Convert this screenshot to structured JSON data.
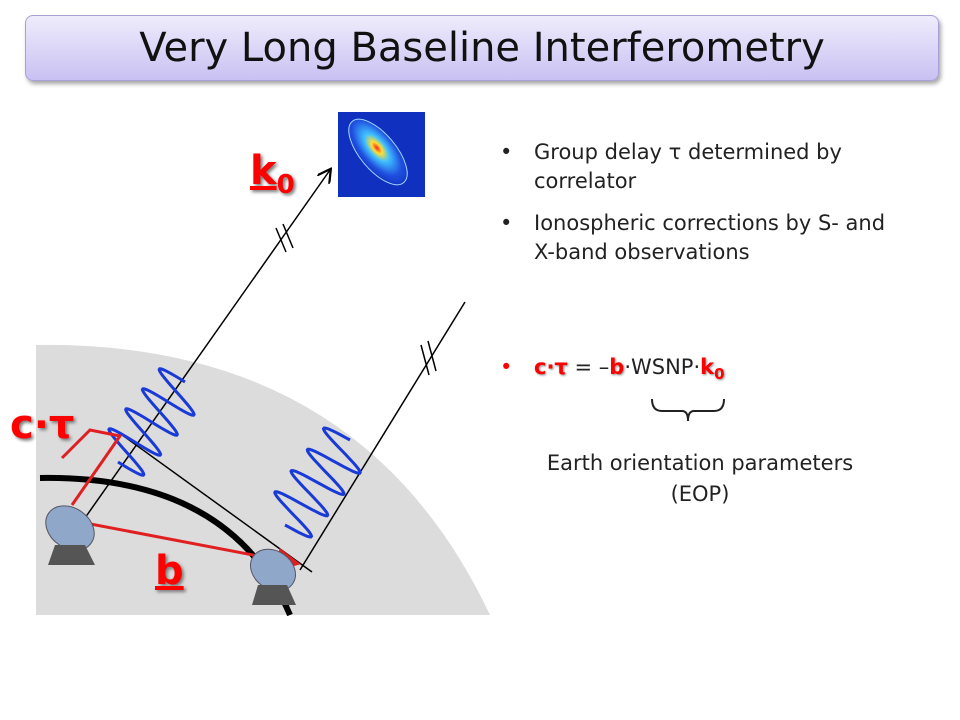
{
  "title": "Very Long Baseline Interferometry",
  "diagram": {
    "wave_vector": {
      "text": "k",
      "sub": "0"
    },
    "delay": "c·τ",
    "baseline": "b"
  },
  "bullets": [
    "Group delay τ determined by correlator",
    "Ionospheric corrections by S- and X-band observations"
  ],
  "equation": [
    {
      "text": "c·τ",
      "color": "#ff0000"
    },
    {
      "text": " = –"
    },
    {
      "text": "b",
      "color": "#ff0000"
    },
    {
      "text": "·WSNP·"
    },
    {
      "text": "k",
      "color": "#ff0000"
    },
    {
      "text": "0",
      "sub": true,
      "color": "#ff0000"
    }
  ],
  "brace_note": [
    "Earth orientation parameters",
    "(EOP)"
  ]
}
